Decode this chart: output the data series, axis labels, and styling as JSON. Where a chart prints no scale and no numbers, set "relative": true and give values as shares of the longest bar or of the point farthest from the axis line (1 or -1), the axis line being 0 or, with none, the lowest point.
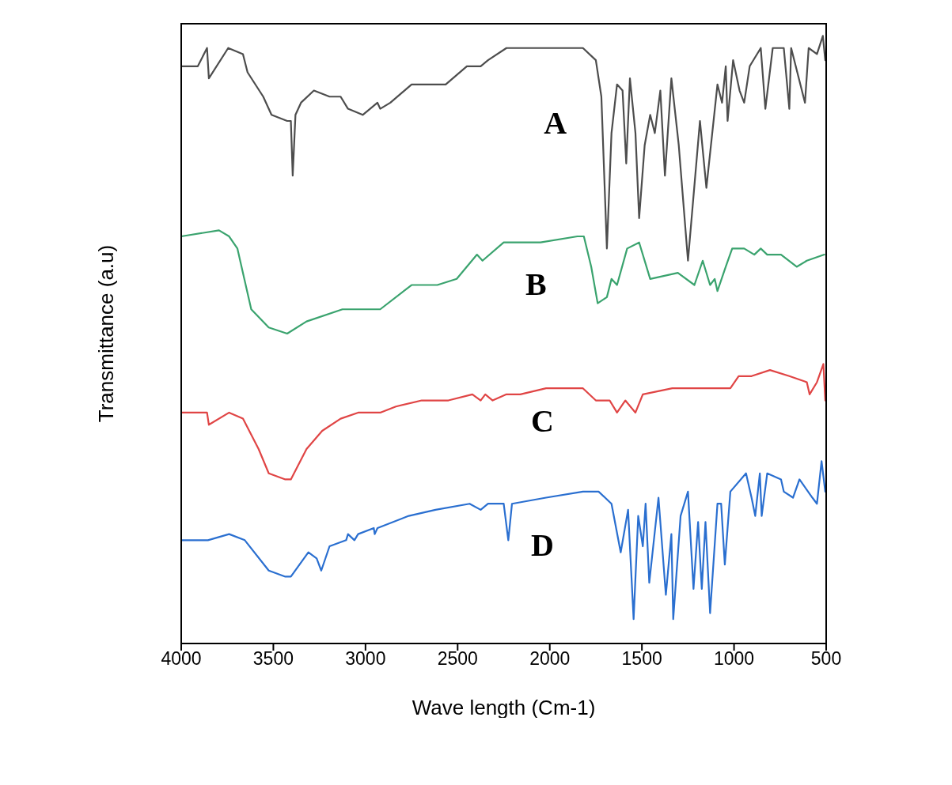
{
  "chart_data": {
    "type": "line",
    "xlabel": "Wave length (Cm-1)",
    "ylabel": "Transmittance (a.u)",
    "relative": true,
    "xlim": [
      4000,
      500
    ],
    "xticks": [
      4000,
      3500,
      3000,
      2500,
      2000,
      1500,
      1000,
      500
    ],
    "series": [
      {
        "name": "A",
        "color": "#4d4d4d",
        "x": [
          4000,
          3910,
          3860,
          3850,
          3745,
          3665,
          3640,
          3555,
          3510,
          3425,
          3405,
          3395,
          3380,
          3350,
          3280,
          3195,
          3135,
          3095,
          3015,
          2935,
          2920,
          2865,
          2750,
          2665,
          2565,
          2450,
          2375,
          2335,
          2235,
          2020,
          1820,
          1750,
          1720,
          1690,
          1665,
          1635,
          1605,
          1585,
          1565,
          1535,
          1515,
          1485,
          1455,
          1430,
          1400,
          1375,
          1340,
          1300,
          1250,
          1185,
          1150,
          1090,
          1065,
          1045,
          1035,
          1005,
          970,
          945,
          915,
          855,
          830,
          790,
          730,
          700,
          690,
          615,
          595,
          550,
          518,
          505
        ],
        "values": [
          0.95,
          0.95,
          0.98,
          0.93,
          0.98,
          0.97,
          0.94,
          0.9,
          0.87,
          0.86,
          0.86,
          0.77,
          0.87,
          0.89,
          0.91,
          0.9,
          0.9,
          0.88,
          0.87,
          0.89,
          0.88,
          0.89,
          0.92,
          0.92,
          0.92,
          0.95,
          0.95,
          0.96,
          0.98,
          0.98,
          0.98,
          0.96,
          0.9,
          0.65,
          0.84,
          0.92,
          0.91,
          0.79,
          0.93,
          0.84,
          0.7,
          0.82,
          0.87,
          0.84,
          0.91,
          0.77,
          0.93,
          0.82,
          0.63,
          0.86,
          0.75,
          0.92,
          0.89,
          0.95,
          0.86,
          0.96,
          0.91,
          0.89,
          0.95,
          0.98,
          0.88,
          0.98,
          0.98,
          0.88,
          0.98,
          0.89,
          0.98,
          0.97,
          1.0,
          0.96
        ]
      },
      {
        "name": "B",
        "color": "#3aa36e",
        "x": [
          4000,
          3795,
          3740,
          3695,
          3665,
          3620,
          3525,
          3425,
          3320,
          3125,
          2980,
          2920,
          2750,
          2610,
          2505,
          2395,
          2365,
          2250,
          2050,
          1850,
          1815,
          1775,
          1740,
          1690,
          1665,
          1635,
          1580,
          1515,
          1455,
          1305,
          1215,
          1170,
          1130,
          1105,
          1090,
          1045,
          1010,
          945,
          890,
          855,
          820,
          745,
          660,
          605,
          510
        ],
        "values": [
          0.67,
          0.68,
          0.67,
          0.65,
          0.61,
          0.55,
          0.52,
          0.51,
          0.53,
          0.55,
          0.55,
          0.55,
          0.59,
          0.59,
          0.6,
          0.64,
          0.63,
          0.66,
          0.66,
          0.67,
          0.67,
          0.62,
          0.56,
          0.57,
          0.6,
          0.59,
          0.65,
          0.66,
          0.6,
          0.61,
          0.59,
          0.63,
          0.59,
          0.6,
          0.58,
          0.62,
          0.65,
          0.65,
          0.64,
          0.65,
          0.64,
          0.64,
          0.62,
          0.63,
          0.64
        ]
      },
      {
        "name": "C",
        "color": "#e04545",
        "x": [
          4000,
          3860,
          3850,
          3740,
          3665,
          3580,
          3525,
          3435,
          3405,
          3320,
          3235,
          3135,
          3040,
          2965,
          2920,
          2835,
          2695,
          2550,
          2420,
          2375,
          2350,
          2310,
          2235,
          2160,
          2020,
          1935,
          1820,
          1750,
          1675,
          1635,
          1590,
          1535,
          1495,
          1335,
          1235,
          1105,
          1065,
          1020,
          975,
          905,
          805,
          700,
          605,
          590,
          550,
          515,
          505
        ],
        "values": [
          0.38,
          0.38,
          0.36,
          0.38,
          0.37,
          0.32,
          0.28,
          0.27,
          0.27,
          0.32,
          0.35,
          0.37,
          0.38,
          0.38,
          0.38,
          0.39,
          0.4,
          0.4,
          0.41,
          0.4,
          0.41,
          0.4,
          0.41,
          0.41,
          0.42,
          0.42,
          0.42,
          0.4,
          0.4,
          0.38,
          0.4,
          0.38,
          0.41,
          0.42,
          0.42,
          0.42,
          0.42,
          0.42,
          0.44,
          0.44,
          0.45,
          0.44,
          0.43,
          0.41,
          0.43,
          0.46,
          0.4
        ]
      },
      {
        "name": "D",
        "color": "#2a6fd0",
        "x": [
          4000,
          3855,
          3740,
          3655,
          3525,
          3435,
          3405,
          3310,
          3265,
          3240,
          3195,
          3105,
          3095,
          3060,
          3040,
          2955,
          2950,
          2935,
          2765,
          2620,
          2435,
          2375,
          2335,
          2250,
          2225,
          2205,
          2020,
          1820,
          1735,
          1665,
          1615,
          1575,
          1545,
          1520,
          1495,
          1480,
          1460,
          1410,
          1370,
          1340,
          1330,
          1290,
          1250,
          1220,
          1195,
          1175,
          1155,
          1130,
          1090,
          1070,
          1050,
          1020,
          935,
          905,
          885,
          860,
          850,
          820,
          745,
          730,
          680,
          645,
          575,
          550,
          525,
          505
        ],
        "values": [
          0.17,
          0.17,
          0.18,
          0.17,
          0.12,
          0.11,
          0.11,
          0.15,
          0.14,
          0.12,
          0.16,
          0.17,
          0.18,
          0.17,
          0.18,
          0.19,
          0.18,
          0.19,
          0.21,
          0.22,
          0.23,
          0.22,
          0.23,
          0.23,
          0.17,
          0.23,
          0.24,
          0.25,
          0.25,
          0.23,
          0.15,
          0.22,
          0.04,
          0.21,
          0.16,
          0.23,
          0.1,
          0.24,
          0.08,
          0.18,
          0.04,
          0.21,
          0.25,
          0.09,
          0.2,
          0.09,
          0.2,
          0.05,
          0.23,
          0.23,
          0.13,
          0.25,
          0.28,
          0.24,
          0.21,
          0.28,
          0.21,
          0.28,
          0.27,
          0.25,
          0.24,
          0.27,
          0.24,
          0.23,
          0.3,
          0.25
        ]
      }
    ]
  }
}
